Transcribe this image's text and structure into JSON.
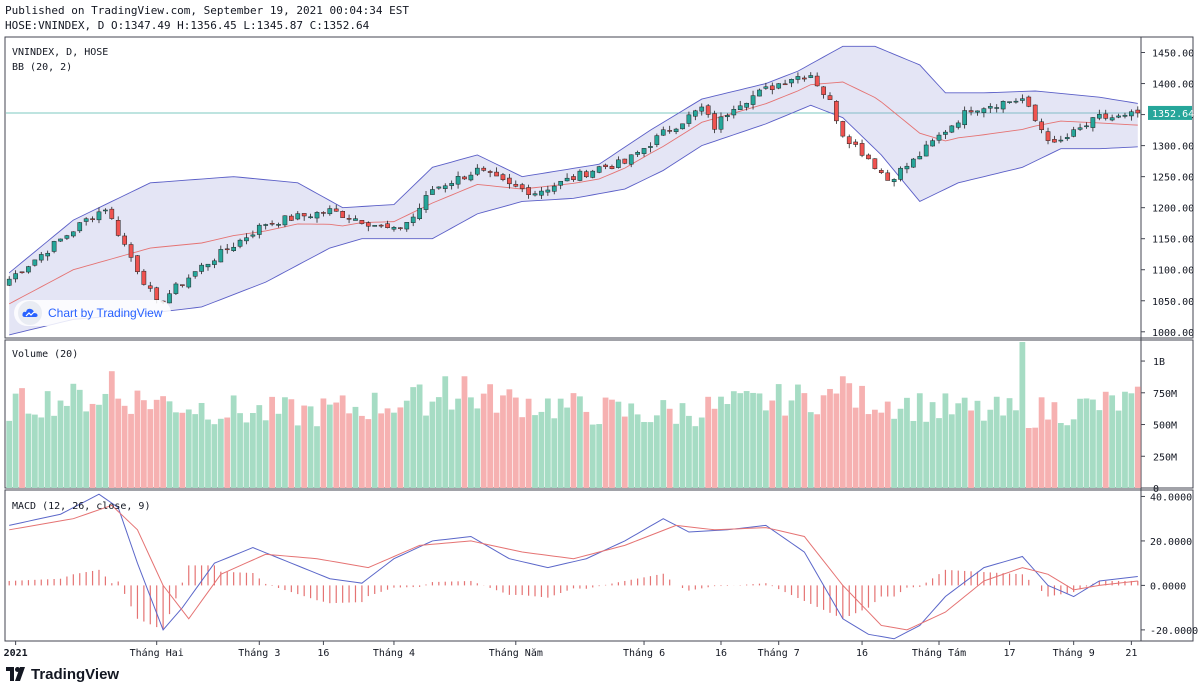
{
  "header": {
    "published": "Published on TradingView.com, September 19, 2021 00:04:34 EST",
    "ohlc": "HOSE:VNINDEX, D O:1347.49 H:1356.45 L:1345.87 C:1352.64"
  },
  "branding": {
    "badge": "Chart by TradingView",
    "logo": "TradingView"
  },
  "colors": {
    "up": "#26a69a",
    "down": "#ef5350",
    "bb_fill": "#9598d6",
    "macd": "#5b67c9",
    "signal": "#e57373"
  },
  "chart_data": [
    {
      "type": "candlestick",
      "pane": "price",
      "legend": [
        "VNINDEX, D, HOSE",
        "BB (20, 2)"
      ],
      "last_price_label": "1352.64",
      "ylim": [
        990,
        1475
      ],
      "yticks": [
        "1000.00",
        "1050.00",
        "1100.00",
        "1150.00",
        "1200.00",
        "1250.00",
        "1300.00",
        "1350.00",
        "1400.00",
        "1450.00"
      ],
      "xticks": [
        "2021",
        "Tháng Hai",
        "Tháng 3",
        "16",
        "Tháng 4",
        "Tháng Năm",
        "Tháng 6",
        "16",
        "Tháng 7",
        "16",
        "Tháng Tám",
        "17",
        "Tháng 9",
        "21"
      ],
      "close_keypoints": [
        [
          0,
          1085
        ],
        [
          12,
          1180
        ],
        [
          15,
          1200
        ],
        [
          17,
          1160
        ],
        [
          19,
          1120
        ],
        [
          23,
          1045
        ],
        [
          30,
          1105
        ],
        [
          40,
          1175
        ],
        [
          50,
          1195
        ],
        [
          55,
          1180
        ],
        [
          60,
          1162
        ],
        [
          63,
          1185
        ],
        [
          66,
          1230
        ],
        [
          73,
          1260
        ],
        [
          78,
          1235
        ],
        [
          82,
          1225
        ],
        [
          86,
          1240
        ],
        [
          92,
          1265
        ],
        [
          96,
          1272
        ],
        [
          102,
          1320
        ],
        [
          108,
          1360
        ],
        [
          110,
          1330
        ],
        [
          113,
          1365
        ],
        [
          118,
          1390
        ],
        [
          122,
          1410
        ],
        [
          125,
          1415
        ],
        [
          128,
          1370
        ],
        [
          130,
          1320
        ],
        [
          134,
          1280
        ],
        [
          137,
          1245
        ],
        [
          141,
          1275
        ],
        [
          146,
          1325
        ],
        [
          150,
          1360
        ],
        [
          155,
          1370
        ],
        [
          158,
          1375
        ],
        [
          160,
          1340
        ],
        [
          163,
          1300
        ],
        [
          166,
          1320
        ],
        [
          170,
          1345
        ],
        [
          174,
          1345
        ],
        [
          176,
          1352.64
        ]
      ],
      "bb_upper_keypoints": [
        [
          0,
          1095
        ],
        [
          10,
          1180
        ],
        [
          22,
          1240
        ],
        [
          35,
          1250
        ],
        [
          45,
          1240
        ],
        [
          52,
          1200
        ],
        [
          60,
          1205
        ],
        [
          66,
          1265
        ],
        [
          73,
          1285
        ],
        [
          80,
          1250
        ],
        [
          86,
          1260
        ],
        [
          92,
          1270
        ],
        [
          100,
          1325
        ],
        [
          108,
          1375
        ],
        [
          118,
          1400
        ],
        [
          123,
          1420
        ],
        [
          130,
          1460
        ],
        [
          135,
          1460
        ],
        [
          142,
          1430
        ],
        [
          146,
          1385
        ],
        [
          152,
          1385
        ],
        [
          160,
          1388
        ],
        [
          170,
          1378
        ],
        [
          176,
          1368
        ]
      ],
      "bb_lower_keypoints": [
        [
          0,
          995
        ],
        [
          10,
          1020
        ],
        [
          22,
          1030
        ],
        [
          30,
          1040
        ],
        [
          40,
          1080
        ],
        [
          50,
          1135
        ],
        [
          55,
          1150
        ],
        [
          60,
          1150
        ],
        [
          66,
          1150
        ],
        [
          73,
          1190
        ],
        [
          80,
          1210
        ],
        [
          88,
          1215
        ],
        [
          96,
          1230
        ],
        [
          102,
          1260
        ],
        [
          108,
          1300
        ],
        [
          118,
          1335
        ],
        [
          125,
          1365
        ],
        [
          130,
          1345
        ],
        [
          136,
          1285
        ],
        [
          142,
          1210
        ],
        [
          148,
          1240
        ],
        [
          152,
          1250
        ],
        [
          158,
          1265
        ],
        [
          164,
          1295
        ],
        [
          170,
          1295
        ],
        [
          176,
          1298
        ]
      ]
    },
    {
      "type": "bar",
      "pane": "volume",
      "legend": "Volume (20)",
      "ylim": [
        0,
        1150
      ],
      "yticks": [
        "0",
        "250M",
        "500M",
        "750M",
        "1B"
      ],
      "note": "volume in millions, colored by candle direction"
    },
    {
      "type": "line",
      "pane": "macd",
      "legend": "MACD (12, 26, close, 9)",
      "ylim": [
        -25,
        42
      ],
      "yticks": [
        "-20.0000",
        "0.0000",
        "20.0000",
        "40.0000"
      ],
      "series": [
        {
          "name": "MACD",
          "keypoints": [
            [
              0,
              27
            ],
            [
              8,
              32
            ],
            [
              14,
              41
            ],
            [
              17,
              35
            ],
            [
              20,
              10
            ],
            [
              24,
              -20
            ],
            [
              27,
              -10
            ],
            [
              32,
              10
            ],
            [
              38,
              17
            ],
            [
              44,
              10
            ],
            [
              50,
              3
            ],
            [
              55,
              1
            ],
            [
              60,
              12
            ],
            [
              66,
              20
            ],
            [
              72,
              22
            ],
            [
              78,
              12
            ],
            [
              84,
              8
            ],
            [
              90,
              12
            ],
            [
              96,
              20
            ],
            [
              102,
              30
            ],
            [
              106,
              24
            ],
            [
              112,
              25
            ],
            [
              118,
              27
            ],
            [
              124,
              15
            ],
            [
              130,
              -15
            ],
            [
              134,
              -22
            ],
            [
              138,
              -24
            ],
            [
              142,
              -18
            ],
            [
              146,
              -5
            ],
            [
              152,
              8
            ],
            [
              158,
              13
            ],
            [
              162,
              0
            ],
            [
              166,
              -5
            ],
            [
              170,
              2
            ],
            [
              176,
              4
            ]
          ]
        },
        {
          "name": "Signal",
          "keypoints": [
            [
              0,
              25
            ],
            [
              10,
              30
            ],
            [
              16,
              36
            ],
            [
              20,
              25
            ],
            [
              24,
              0
            ],
            [
              28,
              -15
            ],
            [
              33,
              5
            ],
            [
              40,
              14
            ],
            [
              48,
              12
            ],
            [
              56,
              8
            ],
            [
              64,
              18
            ],
            [
              72,
              20
            ],
            [
              80,
              15
            ],
            [
              88,
              12
            ],
            [
              96,
              18
            ],
            [
              104,
              27
            ],
            [
              110,
              25
            ],
            [
              118,
              26
            ],
            [
              124,
              22
            ],
            [
              130,
              0
            ],
            [
              136,
              -18
            ],
            [
              140,
              -20
            ],
            [
              146,
              -12
            ],
            [
              152,
              2
            ],
            [
              158,
              8
            ],
            [
              162,
              5
            ],
            [
              166,
              -2
            ],
            [
              170,
              0
            ],
            [
              176,
              2
            ]
          ]
        }
      ]
    }
  ]
}
